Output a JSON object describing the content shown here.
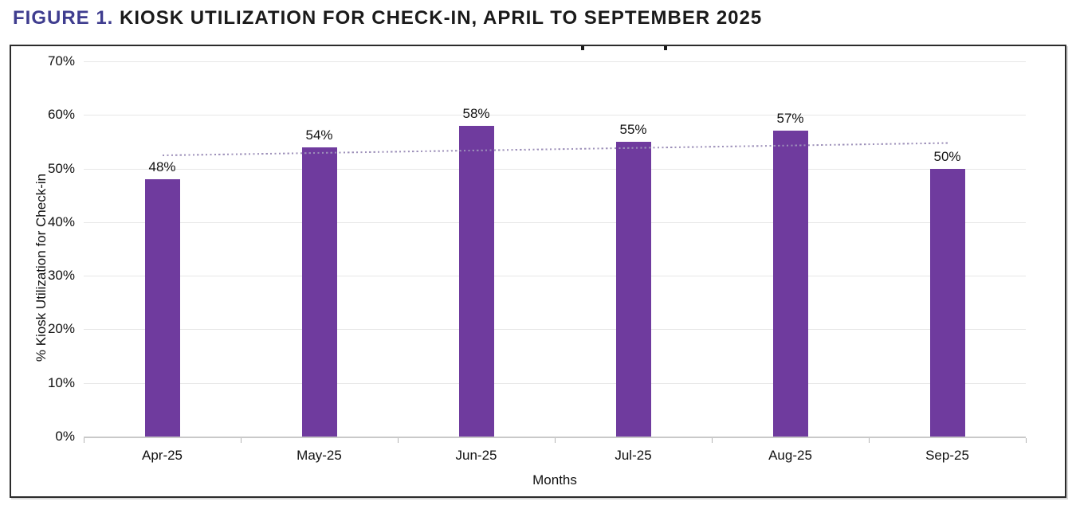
{
  "figure": {
    "label": "FIGURE 1.",
    "title": "KIOSK UTILIZATION FOR CHECK-IN, APRIL TO SEPTEMBER 2025"
  },
  "chart_data": {
    "type": "bar",
    "categories": [
      "Apr-25",
      "May-25",
      "Jun-25",
      "Jul-25",
      "Aug-25",
      "Sep-25"
    ],
    "values": [
      48,
      54,
      58,
      55,
      57,
      50
    ],
    "data_labels": [
      "48%",
      "54%",
      "58%",
      "55%",
      "57%",
      "50%"
    ],
    "title": "",
    "xlabel": "Months",
    "ylabel": "% Kiosk Utilization for Check-in",
    "ylim": [
      0,
      70
    ],
    "ytick_step": 10,
    "ytick_labels": [
      "0%",
      "10%",
      "20%",
      "30%",
      "40%",
      "50%",
      "60%",
      "70%"
    ],
    "grid": true,
    "legend": "none",
    "trendline": {
      "type": "linear",
      "style": "dotted",
      "start_pct": 52.5,
      "end_pct": 54.8
    }
  },
  "colors": {
    "bar": "#6F3B9E",
    "trendline": "#9D90B9",
    "figure_label": "#3F3D8F",
    "figure_title_text": "#1A1A1A",
    "gridline": "#E7E7E7",
    "axis_line": "#C9C9C9",
    "tick": "#B5B5B5",
    "frame_border": "#2B2B2B"
  }
}
